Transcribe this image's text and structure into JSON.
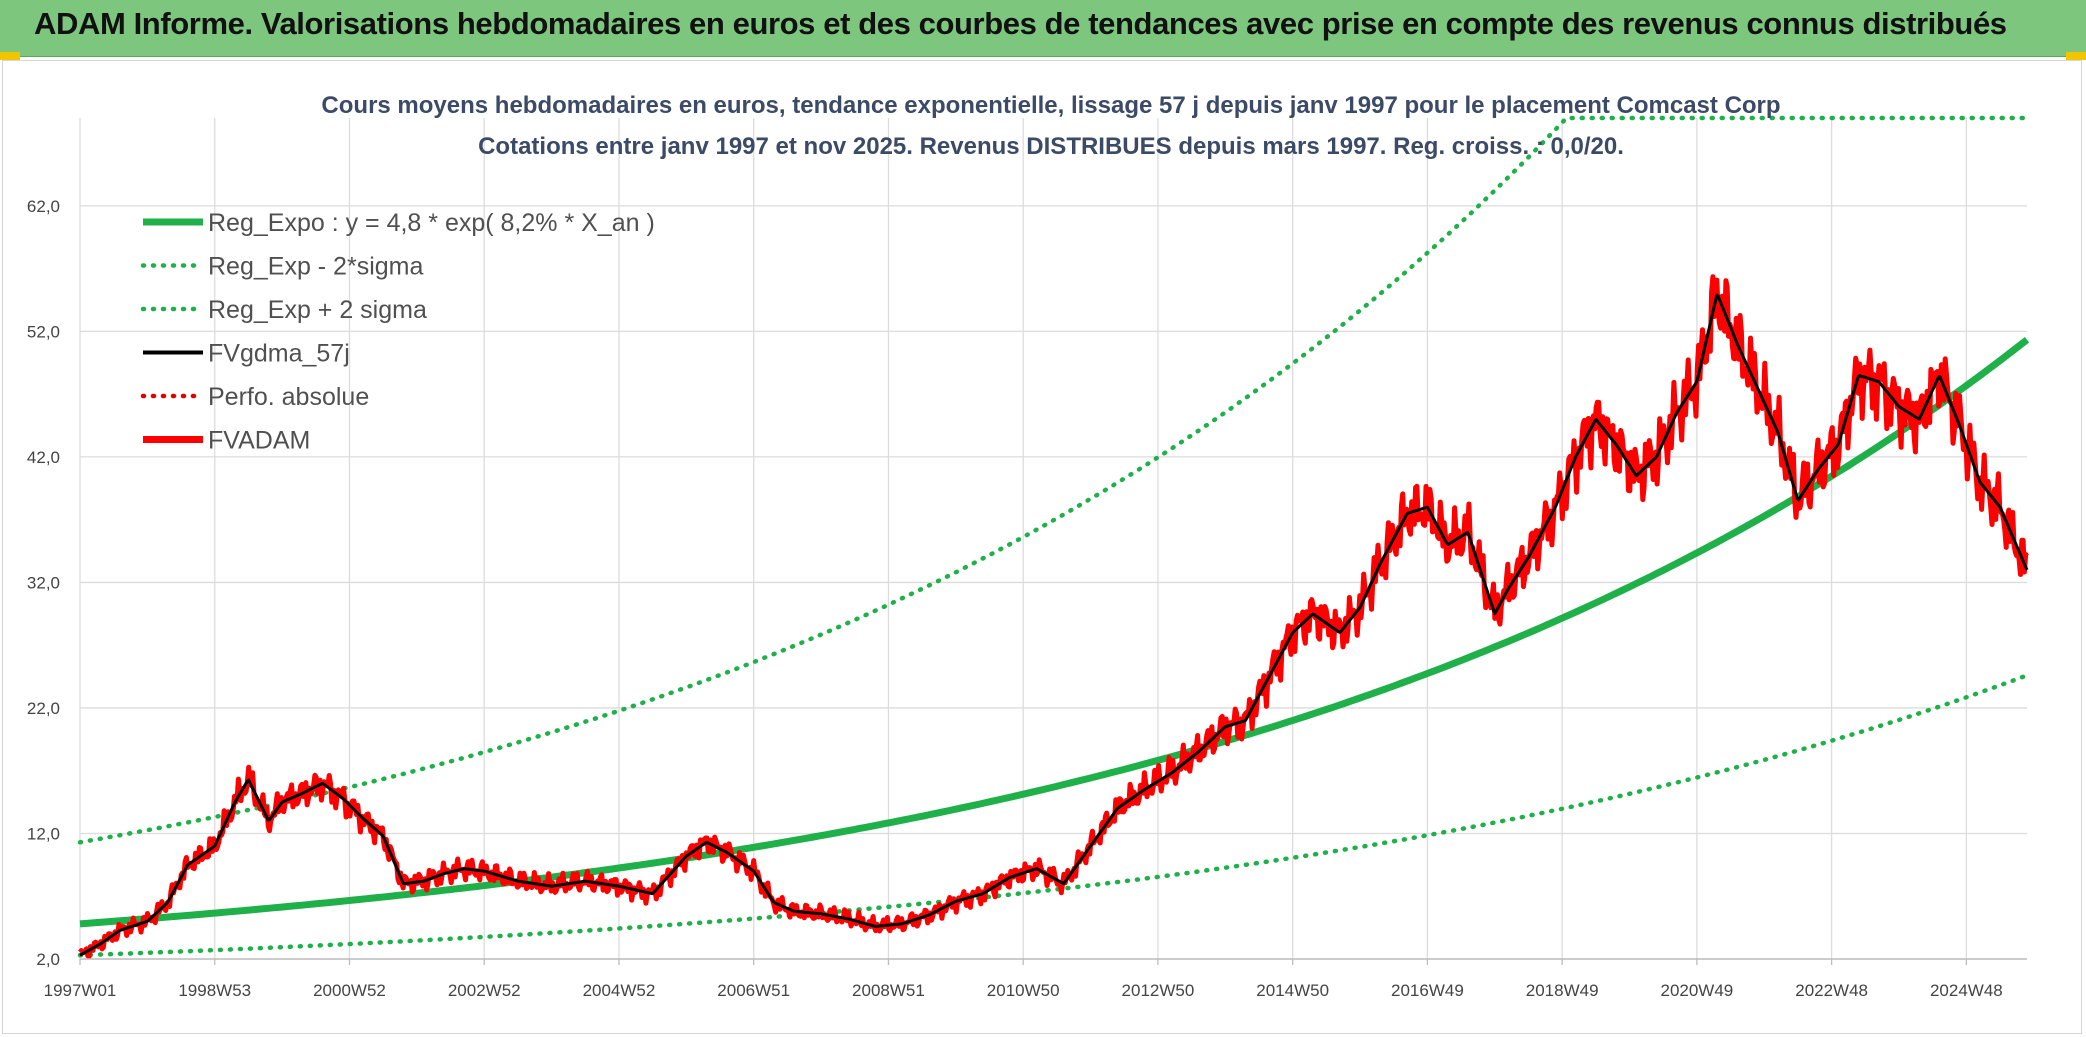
{
  "header": {
    "title": "ADAM Informe. Valorisations hebdomadaires en euros et des courbes de tendances avec prise en compte des revenus connus distribués"
  },
  "chart_data": {
    "type": "line",
    "title": "Cours moyens hebdomadaires en euros, tendance exponentielle, lissage 57 j depuis janv 1997 pour le placement Comcast Corp",
    "subtitle": "Cotations entre janv 1997 et nov 2025. Revenus DISTRIBUES depuis mars 1997. Reg. croiss. : 0,0/20.",
    "xlabel": "",
    "ylabel": "",
    "xlim": [
      1997.0,
      2025.9
    ],
    "ylim": [
      2.0,
      69.0
    ],
    "yticks": [
      2.0,
      12.0,
      22.0,
      32.0,
      42.0,
      52.0,
      62.0
    ],
    "ytick_labels": [
      "2,0",
      "12,0",
      "22,0",
      "32,0",
      "42,0",
      "52,0",
      "62,0"
    ],
    "xticks": [
      1997.0,
      1999.0,
      2001.0,
      2003.0,
      2005.0,
      2007.0,
      2009.0,
      2011.0,
      2013.0,
      2015.0,
      2017.0,
      2019.0,
      2021.0,
      2023.0,
      2025.0
    ],
    "xtick_labels": [
      "1997W01",
      "1998W53",
      "2000W52",
      "2002W52",
      "2004W52",
      "2006W51",
      "2008W51",
      "2010W50",
      "2012W50",
      "2014W50",
      "2016W49",
      "2018W49",
      "2020W49",
      "2022W48",
      "2024W48"
    ],
    "grid": true,
    "legend_position": "top-left",
    "legend": [
      {
        "label": "Reg_Expo : y = 4,8 * exp( 8,2% *  X_an )",
        "color": "#1fb04a",
        "style": "solid-thick"
      },
      {
        "label": "Reg_Exp - 2*sigma",
        "color": "#1fb04a",
        "style": "dotted"
      },
      {
        "label": "Reg_Exp + 2 sigma",
        "color": "#1fb04a",
        "style": "dotted"
      },
      {
        "label": "FVgdma_57j",
        "color": "#000000",
        "style": "solid"
      },
      {
        "label": "Perfo. absolue",
        "color": "#e00000",
        "style": "dotted"
      },
      {
        "label": "FVADAM",
        "color": "#ff0000",
        "style": "solid-thick"
      }
    ],
    "series": [
      {
        "name": "Reg_Expo",
        "formula": "y = 4.8 * exp(0.082 * (x - 1997))",
        "color": "#1fb04a"
      },
      {
        "name": "Reg_Exp - 2*sigma",
        "formula": "y = 2.3 * exp(0.082 * (x - 1997))",
        "color": "#1fb04a"
      },
      {
        "name": "Reg_Exp + 2 sigma",
        "formula": "y = 11.3 * exp(0.082 * (x - 1997)), capped at 69.0",
        "color": "#1fb04a"
      },
      {
        "name": "FVADAM",
        "color": "#ff0000",
        "x": [
          1997.0,
          1997.3,
          1997.6,
          1998.0,
          1998.3,
          1998.6,
          1999.0,
          1999.3,
          1999.5,
          1999.8,
          2000.0,
          2000.3,
          2000.6,
          2000.9,
          2001.2,
          2001.5,
          2001.8,
          2002.1,
          2002.4,
          2002.7,
          2003.0,
          2003.5,
          2004.0,
          2004.5,
          2005.0,
          2005.5,
          2006.0,
          2006.3,
          2006.6,
          2007.0,
          2007.3,
          2007.6,
          2008.0,
          2008.4,
          2008.8,
          2009.2,
          2009.6,
          2010.0,
          2010.4,
          2010.8,
          2011.2,
          2011.6,
          2012.0,
          2012.4,
          2012.8,
          2013.2,
          2013.6,
          2014.0,
          2014.3,
          2014.6,
          2015.0,
          2015.3,
          2015.7,
          2016.0,
          2016.3,
          2016.7,
          2017.0,
          2017.3,
          2017.6,
          2018.0,
          2018.2,
          2018.5,
          2018.9,
          2019.2,
          2019.5,
          2019.8,
          2020.1,
          2020.4,
          2020.7,
          2021.0,
          2021.3,
          2021.6,
          2021.9,
          2022.2,
          2022.5,
          2022.8,
          2023.1,
          2023.4,
          2023.7,
          2024.0,
          2024.3,
          2024.6,
          2024.9,
          2025.2,
          2025.5,
          2025.9
        ],
        "values": [
          2.3,
          3.2,
          4.3,
          5.0,
          6.5,
          9.5,
          11.0,
          14.5,
          16.3,
          13.0,
          14.5,
          15.2,
          16.0,
          14.8,
          13.2,
          11.8,
          8.0,
          8.2,
          8.8,
          9.2,
          9.0,
          8.2,
          7.8,
          8.2,
          7.8,
          7.2,
          10.2,
          11.3,
          10.5,
          9.0,
          6.5,
          5.8,
          5.6,
          5.2,
          4.6,
          4.8,
          5.5,
          6.6,
          7.2,
          8.5,
          9.2,
          8.0,
          11.0,
          14.0,
          15.5,
          16.8,
          18.5,
          20.5,
          21.0,
          24.0,
          28.0,
          29.5,
          28.0,
          30.0,
          33.5,
          37.5,
          38.0,
          35.0,
          36.0,
          29.5,
          31.5,
          34.0,
          38.0,
          42.0,
          45.0,
          43.0,
          40.5,
          42.0,
          45.5,
          48.0,
          55.0,
          51.0,
          47.5,
          44.0,
          38.5,
          41.0,
          43.0,
          48.5,
          48.0,
          46.0,
          45.0,
          48.5,
          44.5,
          40.0,
          38.0,
          33.0
        ]
      },
      {
        "name": "FVgdma_57j",
        "color": "#000000",
        "note": "57-day smoothed version of FVADAM"
      }
    ]
  }
}
